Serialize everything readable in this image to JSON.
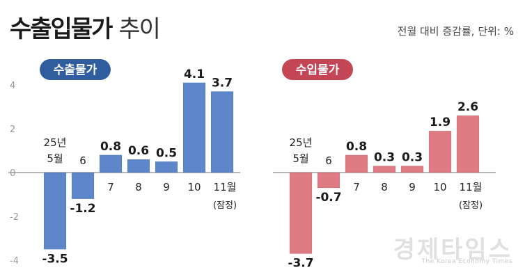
{
  "title": {
    "main": "수출입물가",
    "sub": "추이"
  },
  "unit_note": "전월 대비 증감률, 단위: %",
  "watermark": {
    "korean": "경제타임스",
    "english": "The Korea Economy Times"
  },
  "colors": {
    "export": "#5b86c9",
    "import": "#de7b82",
    "export_badge": "#2f5d9e",
    "import_badge": "#c34556",
    "axis": "#888888",
    "tick_text": "#9a9a9a"
  },
  "chart_data": [
    {
      "type": "bar",
      "title": "수출물가",
      "categories": [
        "25년 5월",
        "6",
        "7",
        "8",
        "9",
        "10",
        "11월 (잠정)"
      ],
      "values": [
        -3.5,
        -1.2,
        0.8,
        0.6,
        0.5,
        4.1,
        3.7
      ],
      "value_labels": [
        "-3.5",
        "-1.2",
        "0.8",
        "0.6",
        "0.5",
        "4.1",
        "3.7"
      ],
      "yticks": [
        "4",
        "2",
        "0",
        "-2",
        "-4"
      ],
      "ylim": [
        -4.5,
        4.5
      ],
      "grid": false
    },
    {
      "type": "bar",
      "title": "수입물가",
      "categories": [
        "25년 5월",
        "6",
        "7",
        "8",
        "9",
        "10",
        "11월 (잠정)"
      ],
      "values": [
        -3.7,
        -0.7,
        0.8,
        0.3,
        0.3,
        1.9,
        2.6
      ],
      "value_labels": [
        "-3.7",
        "-0.7",
        "0.8",
        "0.3",
        "0.3",
        "1.9",
        "2.6"
      ],
      "ylim": [
        -4.5,
        4.5
      ],
      "grid": false
    }
  ]
}
